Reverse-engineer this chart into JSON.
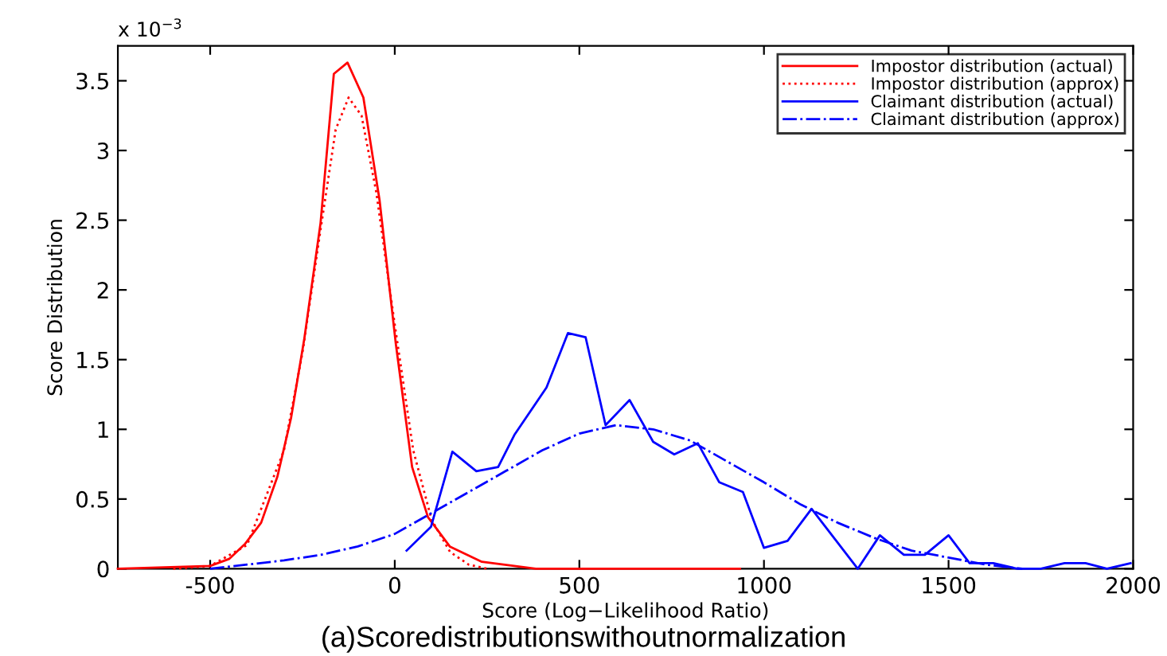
{
  "chart_data": {
    "type": "line",
    "xlabel": "Score (Log−Likelihood Ratio)",
    "ylabel": "Score Distribution",
    "annotations": [
      "x 10$^{−3}$",
      "(a)Scoredistributionswithoutnormalization"
    ],
    "xlim": [
      -750,
      2000
    ],
    "xticks": [
      -500,
      0,
      500,
      1000,
      1500,
      2000
    ],
    "ylim": [
      0,
      3.75
    ],
    "yticks": [
      0,
      0.5,
      1,
      1.5,
      2,
      2.5,
      3,
      3.5
    ],
    "grid": false,
    "legend": "top right",
    "marker": "none",
    "series": [
      {
        "name": "Impostor distribution (actual)",
        "color": "#ff0000",
        "line_style": "solid",
        "x": [
          -750,
          -500,
          -449,
          -405,
          -362,
          -318,
          -281,
          -245,
          -201,
          -165,
          -128,
          -85,
          -41,
          3,
          47,
          90,
          149,
          236,
          382,
          935
        ],
        "values": [
          0,
          0.02,
          0.07,
          0.18,
          0.33,
          0.66,
          1.08,
          1.65,
          2.48,
          3.55,
          3.63,
          3.38,
          2.64,
          1.61,
          0.73,
          0.37,
          0.16,
          0.05,
          0,
          0
        ]
      },
      {
        "name": "Impostor distribution (approx)",
        "color": "#ff0000",
        "line_style": "dotted",
        "x": [
          -600,
          -500,
          -400,
          -300,
          -250,
          -200,
          -160,
          -125,
          -90,
          -50,
          0,
          50,
          100,
          150,
          200,
          250
        ],
        "values": [
          0,
          0.02,
          0.17,
          0.85,
          1.55,
          2.45,
          3.15,
          3.38,
          3.25,
          2.7,
          1.75,
          0.85,
          0.35,
          0.12,
          0.03,
          0
        ]
      },
      {
        "name": "Claimant distribution (actual)",
        "color": "#0000ff",
        "line_style": "solid",
        "x": [
          32,
          98,
          156,
          221,
          280,
          324,
          411,
          469,
          517,
          571,
          636,
          700,
          757,
          821,
          879,
          943,
          1000,
          1064,
          1129,
          1193,
          1254,
          1314,
          1379,
          1436,
          1500,
          1557,
          1621,
          1686,
          1750,
          1814,
          1871,
          1929,
          1993
        ],
        "values": [
          0.13,
          0.3,
          0.84,
          0.7,
          0.73,
          0.96,
          1.3,
          1.69,
          1.66,
          1.03,
          1.21,
          0.91,
          0.82,
          0.9,
          0.62,
          0.55,
          0.15,
          0.2,
          0.43,
          0.21,
          0,
          0.24,
          0.1,
          0.1,
          0.24,
          0.04,
          0.04,
          0,
          0,
          0.04,
          0.04,
          0,
          0.04
        ]
      },
      {
        "name": "Claimant distribution (approx)",
        "color": "#0000ff",
        "line_style": "dashdot",
        "x": [
          -500,
          -400,
          -300,
          -200,
          -100,
          0,
          100,
          200,
          300,
          400,
          500,
          600,
          700,
          800,
          900,
          1000,
          1100,
          1200,
          1300,
          1400,
          1500,
          1600,
          1700
        ],
        "values": [
          0,
          0.03,
          0.06,
          0.1,
          0.16,
          0.25,
          0.4,
          0.55,
          0.7,
          0.85,
          0.97,
          1.03,
          1.0,
          0.92,
          0.77,
          0.62,
          0.46,
          0.33,
          0.22,
          0.13,
          0.08,
          0.03,
          0
        ]
      }
    ]
  }
}
